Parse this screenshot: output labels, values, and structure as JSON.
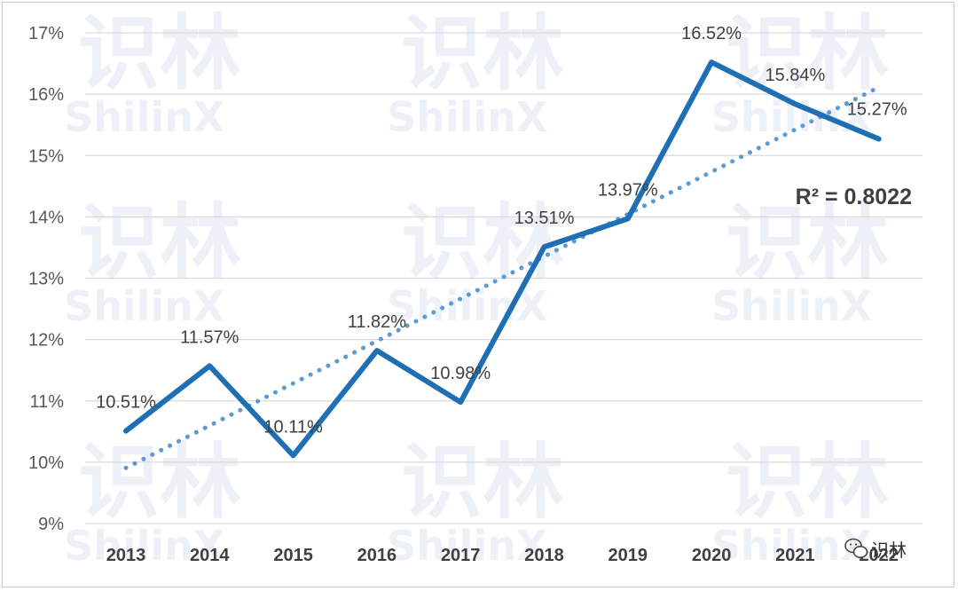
{
  "chart_data": {
    "type": "line",
    "categories": [
      "2013",
      "2014",
      "2015",
      "2016",
      "2017",
      "2018",
      "2019",
      "2020",
      "2021",
      "2022"
    ],
    "series": [
      {
        "values": [
          10.51,
          11.57,
          10.11,
          11.82,
          10.98,
          13.51,
          13.97,
          16.52,
          15.84,
          15.27
        ],
        "labels": [
          "10.51%",
          "11.57%",
          "10.11%",
          "11.82%",
          "10.98%",
          "13.51%",
          "13.97%",
          "16.52%",
          "15.84%",
          "15.27%"
        ],
        "color": "#1f6fb5"
      }
    ],
    "trendline": {
      "type": "linear",
      "style": "dotted",
      "color": "#5b9bd5",
      "r_squared_label": "R² = 0.8022"
    },
    "yticks": [
      "9%",
      "10%",
      "11%",
      "12%",
      "13%",
      "14%",
      "15%",
      "16%",
      "17%"
    ],
    "ylim": [
      9,
      17
    ],
    "grid": true,
    "legend": "none",
    "title": "",
    "xlabel": "",
    "ylabel": ""
  },
  "watermark": {
    "logo_text": "识林",
    "brand_text": "ShilinX",
    "color": "#dfe5f1"
  },
  "corner_badge": {
    "icon": "wechat-icon",
    "text": "识林"
  }
}
